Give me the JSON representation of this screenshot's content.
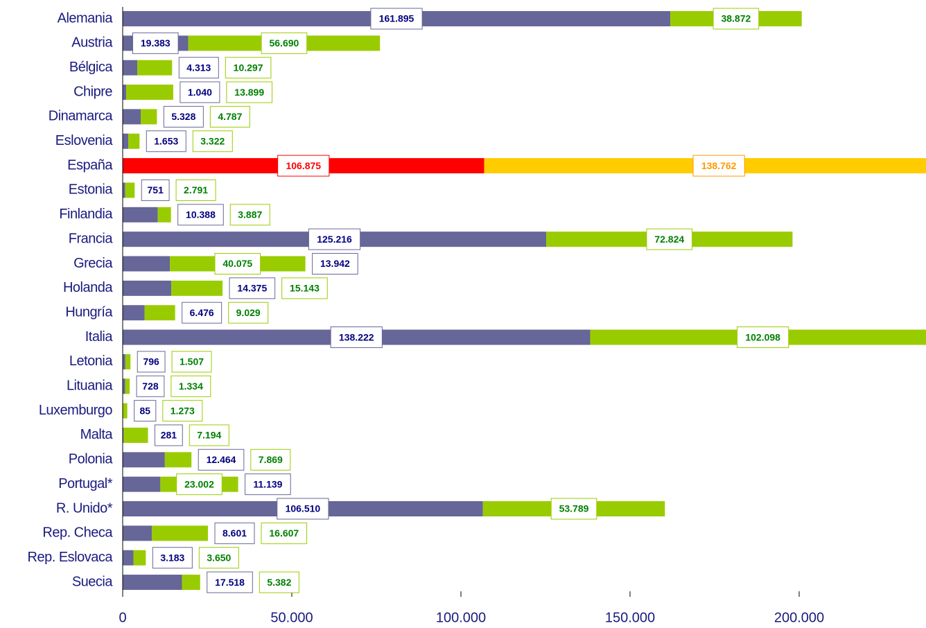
{
  "chart_data": {
    "type": "hbar_stacked",
    "categories": [
      "Alemania",
      "Austria",
      "Bélgica",
      "Chipre",
      "Dinamarca",
      "Eslovenia",
      "España",
      "Estonia",
      "Finlandia",
      "Francia",
      "Grecia",
      "Holanda",
      "Hungría",
      "Italia",
      "Letonia",
      "Lituania",
      "Luxemburgo",
      "Malta",
      "Polonia",
      "Portugal*",
      "R. Unido*",
      "Rep. Checa",
      "Rep. Eslovaca",
      "Suecia"
    ],
    "series": [
      {
        "color": "#666699",
        "label_color": "#000080",
        "highlight_color": "#ff0000",
        "values": [
          161895,
          19383,
          4313,
          1040,
          5328,
          1653,
          106875,
          751,
          10388,
          125216,
          13942,
          14375,
          6476,
          138222,
          796,
          728,
          85,
          281,
          12464,
          11139,
          106510,
          8601,
          3183,
          17518
        ],
        "value_labels": [
          "161.895",
          "19.383",
          "4.313",
          "1.040",
          "5.328",
          "1.653",
          "106.875",
          "751",
          "10.388",
          "125.216",
          "13.942",
          "14.375",
          "6.476",
          "138.222",
          "796",
          "728",
          "85",
          "281",
          "12.464",
          "11.139",
          "106.510",
          "8.601",
          "3.183",
          "17.518"
        ]
      },
      {
        "color": "#99cc00",
        "label_color": "#008000",
        "highlight_color": "#ffcc00",
        "values": [
          38872,
          56690,
          10297,
          13899,
          4787,
          3322,
          138762,
          2791,
          3887,
          72824,
          40075,
          15143,
          9029,
          102098,
          1507,
          1334,
          1273,
          7194,
          7869,
          23002,
          53789,
          16607,
          3650,
          5382
        ],
        "value_labels": [
          "38.872",
          "56.690",
          "10.297",
          "13.899",
          "4.787",
          "3.322",
          "138.762",
          "2.791",
          "3.887",
          "72.824",
          "40.075",
          "15.143",
          "9.029",
          "102.098",
          "1.507",
          "1.334",
          "1.273",
          "7.194",
          "7.869",
          "23.002",
          "53.789",
          "16.607",
          "3.650",
          "5.382"
        ]
      }
    ],
    "highlight": 6,
    "xlim": [
      0,
      237500
    ],
    "xticks": [
      0,
      {
        "value": 50000,
        "label": "50.000"
      },
      {
        "value": 100000,
        "label": "100.000"
      },
      {
        "value": 150000,
        "label": "150.000"
      },
      {
        "value": 200000,
        "label": "200.000"
      }
    ]
  }
}
